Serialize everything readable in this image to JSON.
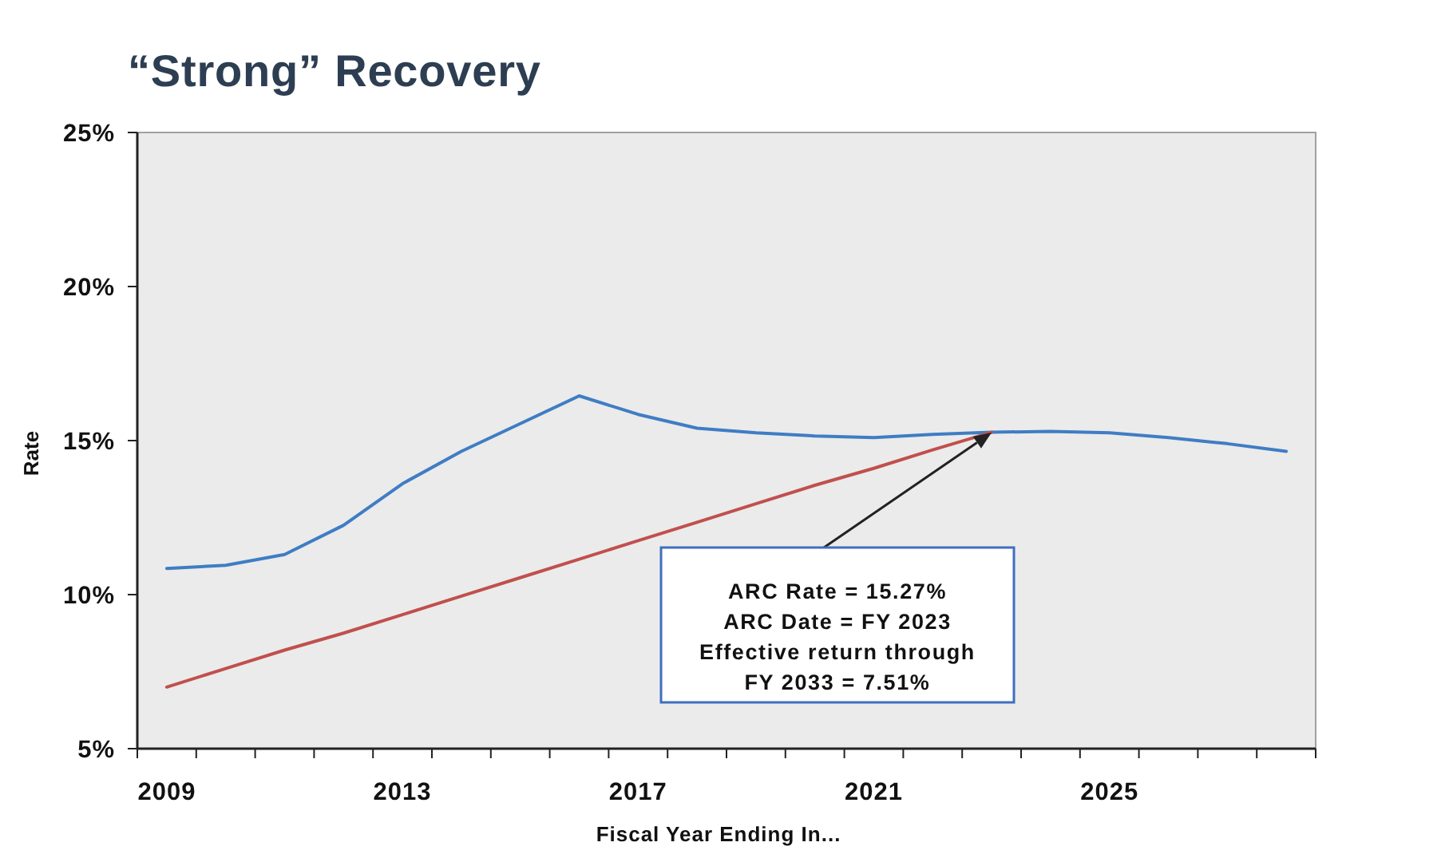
{
  "chart_data": {
    "type": "line",
    "title": "“Strong” Recovery",
    "xlabel": "Fiscal Year Ending In...",
    "ylabel": "Rate",
    "x": [
      2009,
      2010,
      2011,
      2012,
      2013,
      2014,
      2015,
      2016,
      2017,
      2018,
      2019,
      2020,
      2021,
      2022,
      2023,
      2024,
      2025,
      2026,
      2027,
      2028
    ],
    "xlim": [
      2008.5,
      2028.5
    ],
    "xticks": [
      2009,
      2013,
      2017,
      2021,
      2025,
      {
        "value": 2008.5,
        "label": null
      },
      {
        "value": 2009.5,
        "label": null
      },
      {
        "value": 2010.5,
        "label": null
      },
      {
        "value": 2011.5,
        "label": null
      },
      {
        "value": 2012.5,
        "label": null
      },
      {
        "value": 2013.5,
        "label": null
      },
      {
        "value": 2014.5,
        "label": null
      },
      {
        "value": 2015.5,
        "label": null
      },
      {
        "value": 2016.5,
        "label": null
      },
      {
        "value": 2017.5,
        "label": null
      },
      {
        "value": 2018.5,
        "label": null
      },
      {
        "value": 2019.5,
        "label": null
      },
      {
        "value": 2020.5,
        "label": null
      },
      {
        "value": 2021.5,
        "label": null
      },
      {
        "value": 2022.5,
        "label": null
      },
      {
        "value": 2023.5,
        "label": null
      },
      {
        "value": 2024.5,
        "label": null
      },
      {
        "value": 2025.5,
        "label": null
      },
      {
        "value": 2026.5,
        "label": null
      },
      {
        "value": 2027.5,
        "label": null
      },
      {
        "value": 2028.5,
        "label": null
      }
    ],
    "ylim": [
      5,
      25
    ],
    "yticks": [
      {
        "value": 5,
        "label": "5%"
      },
      {
        "value": 10,
        "label": "10%"
      },
      {
        "value": 15,
        "label": "15%"
      },
      {
        "value": 20,
        "label": "20%"
      },
      {
        "value": 25,
        "label": "25%"
      }
    ],
    "series": [
      {
        "color": "#3f7dc4",
        "values": [
          10.85,
          10.95,
          11.3,
          12.25,
          13.6,
          14.65,
          15.55,
          16.45,
          15.85,
          15.4,
          15.25,
          15.15,
          15.1,
          15.2,
          15.27,
          15.3,
          15.25,
          15.1,
          14.9,
          14.65
        ]
      },
      {
        "color": "#c0504d",
        "values": [
          7.0,
          7.6,
          8.2,
          8.75,
          9.35,
          9.95,
          10.55,
          11.15,
          11.75,
          12.35,
          12.95,
          13.55,
          14.1,
          14.7,
          15.27,
          null,
          null,
          null,
          null,
          null
        ]
      }
    ],
    "annotations": [
      "ARC Rate = 15.27%\nARC Date = FY 2023\nEffective return through\nFY 2033 = 7.51%"
    ]
  }
}
